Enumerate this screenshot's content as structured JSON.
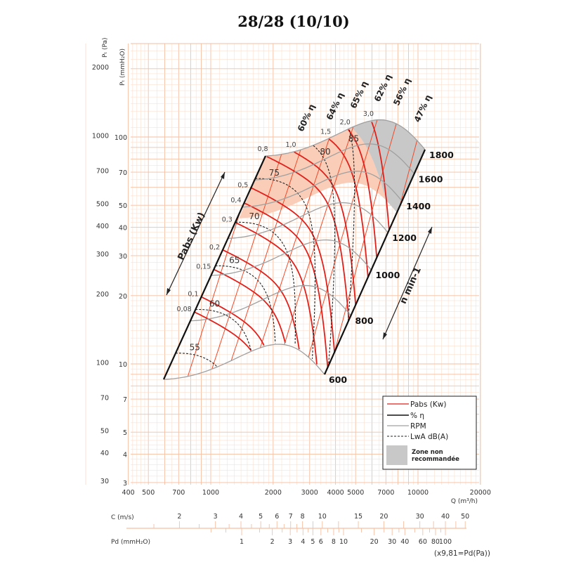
{
  "chart_data": {
    "type": "line",
    "title": "28/28 (10/10)",
    "x_axis": {
      "label": "Q (m³/h)",
      "scale": "log",
      "range": [
        400,
        20000
      ],
      "ticks": [
        "400",
        "500",
        "700",
        "1000",
        "2000",
        "3000",
        "4000",
        "5000",
        "7000",
        "10000",
        "20000"
      ]
    },
    "y_axis_pa": {
      "label": "Pₜ (Pa)",
      "scale": "log",
      "ticks": [
        "2000",
        "1000",
        "700",
        "500",
        "400",
        "300",
        "200",
        "100",
        "70",
        "50",
        "40",
        "30"
      ]
    },
    "y_axis_mm": {
      "label": "Pₜ (mmH₂O)",
      "scale": "log",
      "ticks": [
        "100",
        "70",
        "50",
        "40",
        "30",
        "20",
        "10",
        "7",
        "5",
        "4",
        "3"
      ]
    },
    "grid": true,
    "rpm_curves": [
      "600",
      "800",
      "1000",
      "1200",
      "1400",
      "1600",
      "1800"
    ],
    "pabs_curves": [
      "0,08",
      "0,1",
      "0,15",
      "0,2",
      "0,3",
      "0,4",
      "0,5",
      "0,8",
      "1,0",
      "1,5",
      "2,0",
      "3,0"
    ],
    "efficiency_labels": [
      "60% η",
      "64% η",
      "65% η",
      "62% η",
      "56% η",
      "47% η"
    ],
    "lwa_curves": [
      "55",
      "60",
      "65",
      "70",
      "75",
      "80",
      "85"
    ],
    "annotations": {
      "pabs_axis": "Pabs (Kw)",
      "rpm_axis": "n   min-1"
    },
    "velocity_scale": {
      "label": "C (m/s)",
      "ticks": [
        "2",
        "3",
        "4",
        "5",
        "6",
        "7",
        "8",
        "10",
        "15",
        "20",
        "30",
        "40",
        "50"
      ]
    },
    "dynamic_pressure_scale": {
      "label": "Pd (mmH₂O)",
      "ticks": [
        "1",
        "2",
        "3",
        "4",
        "5",
        "6",
        "8",
        "10",
        "20",
        "30",
        "40",
        "60",
        "80",
        "100"
      ],
      "note": "(x9,81=Pd(Pa))"
    },
    "legend": {
      "placement": "bottom-right",
      "items": [
        {
          "label": "Pabs (Kw)",
          "color": "#e0201b",
          "style": "solid"
        },
        {
          "label": "% η",
          "color": "#111111",
          "style": "solid"
        },
        {
          "label": "RPM",
          "color": "#a0a0a0",
          "style": "solid"
        },
        {
          "label": "LwA dB(A)",
          "color": "#222222",
          "style": "dashed"
        }
      ],
      "zone_line1": "Zone non",
      "zone_line2": "recommandée",
      "zone_color": "#c8c8c8"
    },
    "colors": {
      "grid": "#fbd9c6",
      "grid_major": "#f6bfa2",
      "recommended_zone": "#f9cdb8",
      "pabs": "#e0201b",
      "efficiency_lines": "#f04a2a",
      "rpm": "#a0a0a0"
    }
  }
}
